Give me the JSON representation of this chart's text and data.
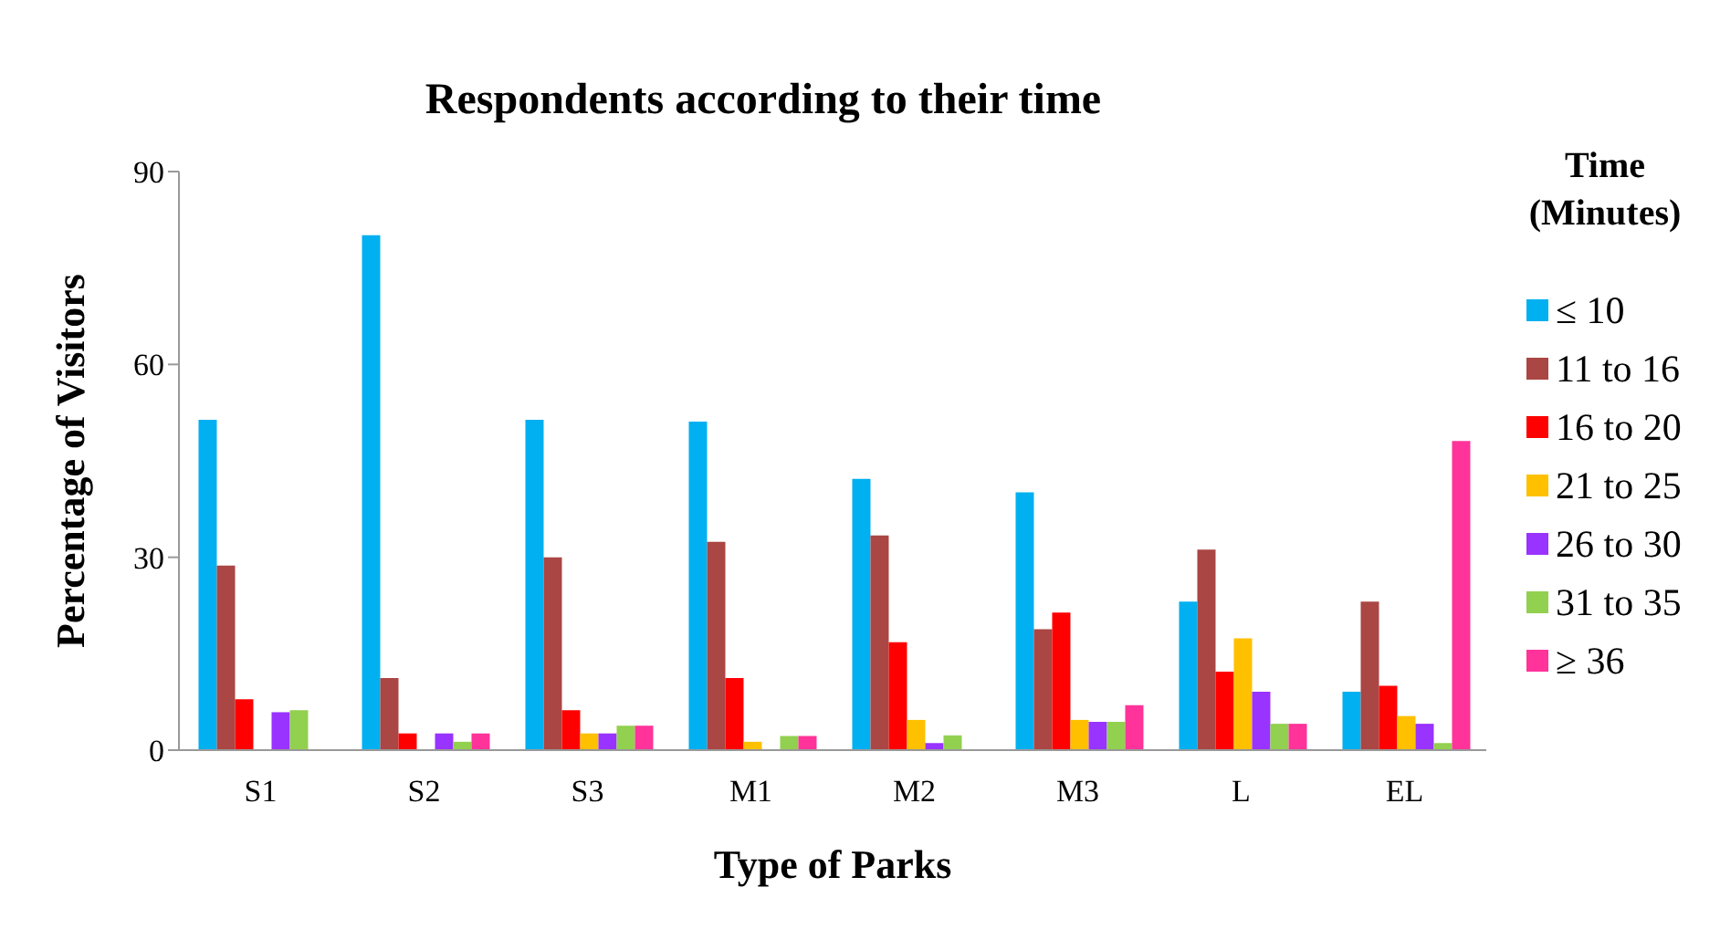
{
  "chart_data": {
    "type": "bar",
    "title": "Respondents according to their time",
    "xlabel": "Type of Parks",
    "ylabel": "Percentage of Visitors",
    "legend_title": "Time (Minutes)",
    "categories": [
      "S1",
      "S2",
      "S3",
      "M1",
      "M2",
      "M3",
      "L",
      "EL"
    ],
    "ylim": [
      0,
      90
    ],
    "yticks": [
      0,
      30,
      60,
      90
    ],
    "grid": false,
    "legend": "right",
    "series": [
      {
        "name": "≤ 10",
        "color": "#00b0f0",
        "values": [
          51.4,
          80.1,
          51.4,
          51.1,
          42.2,
          40.1,
          23.1,
          9.1
        ]
      },
      {
        "name": "11 to 16",
        "color": "#aa4643",
        "values": [
          28.7,
          11.2,
          30.0,
          32.4,
          33.4,
          18.8,
          31.2,
          23.1
        ]
      },
      {
        "name": "16 to 20",
        "color": "#ff0000",
        "values": [
          7.9,
          2.6,
          6.2,
          11.2,
          16.8,
          21.4,
          12.2,
          10.0
        ]
      },
      {
        "name": "21 to 25",
        "color": "#ffc000",
        "values": [
          0,
          0,
          2.6,
          1.3,
          4.7,
          4.7,
          17.4,
          5.3
        ]
      },
      {
        "name": "26 to 30",
        "color": "#9933ff",
        "values": [
          5.9,
          2.6,
          2.6,
          0,
          1.1,
          4.4,
          9.1,
          4.1
        ]
      },
      {
        "name": "31 to 35",
        "color": "#92d050",
        "values": [
          6.2,
          1.3,
          3.8,
          2.2,
          2.3,
          4.4,
          4.1,
          1.1
        ]
      },
      {
        "name": "≥ 36",
        "color": "#ff3399",
        "values": [
          0,
          2.6,
          3.8,
          2.2,
          0,
          7.0,
          4.1,
          48.1
        ]
      }
    ]
  }
}
